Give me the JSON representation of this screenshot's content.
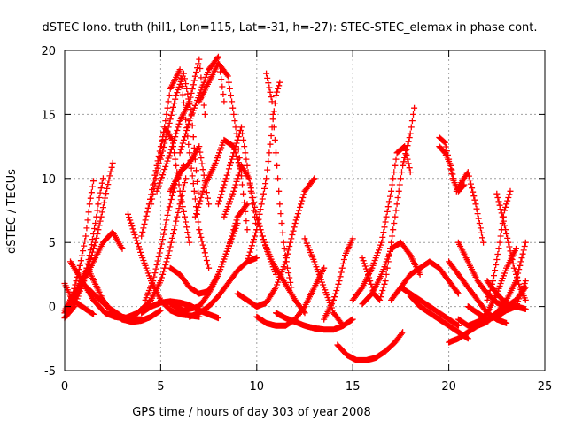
{
  "chart_data": {
    "type": "scatter",
    "title": "dSTEC Iono. truth (hil1, Lon=115, Lat=-31, h=-27): STEC-STEC_elemax in phase cont.",
    "xlabel": "GPS time / hours of day 303 of year 2008",
    "ylabel": "dSTEC  / TECUs",
    "xlim": [
      0,
      25
    ],
    "ylim": [
      -5,
      20
    ],
    "xticks": [
      0,
      5,
      10,
      15,
      20,
      25
    ],
    "yticks": [
      -5,
      0,
      5,
      10,
      15,
      20
    ],
    "xtick_labels": [
      "0",
      "5",
      "10",
      "15",
      "20",
      "25"
    ],
    "ytick_labels": [
      "-5",
      "0",
      "5",
      "10",
      "15",
      "20"
    ],
    "grid": true,
    "marker": "+",
    "color": "#ff0000",
    "series": [
      {
        "x": [
          0.0,
          0.3,
          0.6,
          0.9,
          1.2,
          1.5
        ],
        "y": [
          1.8,
          0.8,
          0.3,
          0.0,
          -0.3,
          -0.6
        ]
      },
      {
        "x": [
          0.0,
          0.5,
          1.0,
          1.3,
          1.6,
          1.8,
          2.0
        ],
        "y": [
          -0.9,
          0.0,
          2.0,
          4.0,
          6.5,
          8.5,
          10.0
        ]
      },
      {
        "x": [
          0.0,
          0.4,
          0.8,
          1.1,
          1.3,
          1.5
        ],
        "y": [
          -0.3,
          0.8,
          3.2,
          5.5,
          8.0,
          9.8
        ]
      },
      {
        "x": [
          0.3,
          0.9,
          1.5,
          2.1,
          2.6,
          3.0,
          3.3
        ],
        "y": [
          3.5,
          2.0,
          0.5,
          -0.5,
          -0.8,
          -0.9,
          -1.0
        ]
      },
      {
        "x": [
          0.3,
          0.8,
          1.2,
          1.6,
          1.9,
          2.2,
          2.5
        ],
        "y": [
          0.5,
          1.8,
          3.0,
          5.0,
          7.0,
          9.2,
          11.2
        ]
      },
      {
        "x": [
          0.0,
          0.5,
          1.0,
          1.5,
          2.0,
          2.5,
          3.0
        ],
        "y": [
          -0.5,
          0.5,
          2.0,
          3.5,
          5.0,
          5.8,
          4.5
        ]
      },
      {
        "x": [
          0.8,
          1.5,
          2.2,
          3.0,
          3.5,
          4.0
        ],
        "y": [
          2.0,
          1.0,
          0.0,
          -0.8,
          -1.0,
          -1.0
        ]
      },
      {
        "x": [
          1.2,
          2.0,
          2.5,
          3.0,
          3.5,
          4.0,
          4.5,
          5.0
        ],
        "y": [
          3.0,
          0.5,
          -0.5,
          -1.0,
          -1.2,
          -1.1,
          -0.8,
          -0.3
        ]
      },
      {
        "x": [
          3.3,
          4.0,
          4.5,
          5.0,
          5.5,
          6.0,
          6.5,
          7.0
        ],
        "y": [
          7.2,
          4.0,
          2.0,
          0.5,
          -0.3,
          -0.6,
          -0.7,
          -0.8
        ]
      },
      {
        "x": [
          3.0,
          3.8,
          4.5,
          5.0,
          5.4,
          5.7,
          6.0,
          6.3
        ],
        "y": [
          -1.0,
          -0.5,
          0.5,
          2.0,
          4.0,
          6.0,
          8.0,
          10.0
        ]
      },
      {
        "x": [
          4.2,
          4.6,
          5.0,
          5.4,
          5.8,
          6.2
        ],
        "y": [
          0.5,
          2.0,
          4.5,
          7.5,
          9.8,
          11.0
        ]
      },
      {
        "x": [
          4.0,
          4.4,
          4.8,
          5.2,
          5.6,
          6.0,
          6.5
        ],
        "y": [
          5.5,
          8.0,
          11.0,
          14.0,
          13.0,
          9.0,
          5.0
        ]
      },
      {
        "x": [
          5.0,
          5.4,
          5.8,
          6.2,
          6.6,
          7.0
        ],
        "y": [
          11.5,
          14.0,
          16.5,
          18.2,
          15.0,
          8.0
        ]
      },
      {
        "x": [
          4.5,
          5.0,
          5.5,
          6.0,
          6.5,
          7.0,
          7.5
        ],
        "y": [
          8.0,
          12.0,
          17.0,
          18.5,
          12.0,
          6.0,
          3.0
        ]
      },
      {
        "x": [
          4.8,
          5.5,
          6.0,
          6.5,
          7.0,
          7.3
        ],
        "y": [
          9.0,
          12.0,
          14.5,
          16.0,
          19.3,
          15.0
        ]
      },
      {
        "x": [
          6.0,
          6.5,
          7.0,
          7.5,
          8.0,
          8.3
        ],
        "y": [
          12.0,
          14.5,
          16.5,
          18.5,
          19.5,
          16.0
        ]
      },
      {
        "x": [
          7.0,
          7.5,
          8.0,
          8.5,
          9.0,
          9.5
        ],
        "y": [
          16.0,
          17.5,
          19.0,
          18.0,
          13.0,
          6.0
        ]
      },
      {
        "x": [
          5.5,
          6.0,
          6.5,
          7.0,
          7.5
        ],
        "y": [
          9.0,
          10.5,
          11.2,
          12.5,
          8.0
        ]
      },
      {
        "x": [
          6.8,
          7.3,
          7.8,
          8.3,
          8.8,
          9.2
        ],
        "y": [
          7.0,
          9.5,
          11.0,
          13.0,
          12.5,
          10.5
        ]
      },
      {
        "x": [
          8.0,
          8.4,
          8.8,
          9.2,
          9.6,
          10.0
        ],
        "y": [
          8.0,
          10.0,
          12.0,
          14.0,
          10.0,
          6.0
        ]
      },
      {
        "x": [
          8.3,
          8.8,
          9.2,
          9.6,
          10.0,
          10.5,
          11.0
        ],
        "y": [
          7.0,
          9.0,
          11.0,
          10.0,
          7.0,
          4.5,
          2.5
        ]
      },
      {
        "x": [
          5.5,
          6.0,
          6.5,
          7.0,
          7.5,
          8.0,
          8.5,
          9.0,
          9.5
        ],
        "y": [
          3.0,
          2.5,
          1.5,
          1.0,
          1.2,
          2.5,
          4.5,
          7.0,
          8.0
        ]
      },
      {
        "x": [
          5.5,
          6.2,
          7.0,
          7.5,
          8.0,
          8.5,
          9.0
        ],
        "y": [
          0.2,
          -0.3,
          0.0,
          1.0,
          2.5,
          4.5,
          6.5
        ]
      },
      {
        "x": [
          4.0,
          4.5,
          5.0,
          5.5,
          6.0,
          6.5,
          7.0,
          7.5,
          8.0
        ],
        "y": [
          -0.5,
          0.0,
          0.3,
          0.4,
          0.3,
          0.1,
          -0.3,
          -0.6,
          -0.9
        ]
      },
      {
        "x": [
          6.5,
          7.0,
          7.5,
          8.0,
          8.5,
          9.0,
          9.5,
          10.0
        ],
        "y": [
          -0.8,
          -0.5,
          0.0,
          0.8,
          1.8,
          2.8,
          3.5,
          3.8
        ]
      },
      {
        "x": [
          9.5,
          10.0,
          10.5,
          10.8,
          11.0,
          11.2
        ],
        "y": [
          3.5,
          6.0,
          10.0,
          14.0,
          16.5,
          17.5
        ]
      },
      {
        "x": [
          10.5,
          10.8,
          11.0,
          11.2,
          11.4,
          11.6,
          11.8
        ],
        "y": [
          18.2,
          16.0,
          12.0,
          8.0,
          5.0,
          3.0,
          1.5
        ]
      },
      {
        "x": [
          10.0,
          10.4,
          10.8,
          11.2,
          11.6,
          12.0,
          12.5
        ],
        "y": [
          7.0,
          5.0,
          3.5,
          2.5,
          1.5,
          0.5,
          -0.5
        ]
      },
      {
        "x": [
          9.0,
          9.5,
          10.0,
          10.5,
          11.0,
          11.5,
          12.0,
          12.5,
          13.0
        ],
        "y": [
          1.0,
          0.5,
          0.0,
          0.3,
          1.5,
          3.5,
          6.5,
          9.0,
          10.0
        ]
      },
      {
        "x": [
          10.0,
          10.5,
          11.0,
          11.5,
          12.0,
          12.5,
          13.0,
          13.5
        ],
        "y": [
          -0.8,
          -1.3,
          -1.5,
          -1.5,
          -1.0,
          0.0,
          1.5,
          3.0
        ]
      },
      {
        "x": [
          11.0,
          11.5,
          12.0,
          12.5,
          13.0,
          13.5,
          14.0,
          14.5,
          15.0
        ],
        "y": [
          -0.5,
          -0.9,
          -1.2,
          -1.5,
          -1.7,
          -1.8,
          -1.8,
          -1.5,
          -1.0
        ]
      },
      {
        "x": [
          12.5,
          13.0,
          13.5,
          14.0,
          14.5
        ],
        "y": [
          5.3,
          3.5,
          1.5,
          -0.5,
          -1.5
        ]
      },
      {
        "x": [
          13.5,
          14.0,
          14.3,
          14.6,
          15.0
        ],
        "y": [
          -1.0,
          0.5,
          2.0,
          4.0,
          5.3
        ]
      },
      {
        "x": [
          14.2,
          14.7,
          15.2,
          15.7,
          16.2,
          16.7,
          17.2,
          17.6
        ],
        "y": [
          -3.0,
          -3.8,
          -4.2,
          -4.2,
          -4.0,
          -3.5,
          -2.8,
          -2.0
        ]
      },
      {
        "x": [
          15.5,
          15.8,
          16.1,
          16.4,
          16.7,
          17.0,
          17.3,
          17.6,
          18.0,
          18.2
        ],
        "y": [
          3.8,
          2.5,
          1.0,
          0.5,
          2.0,
          5.0,
          8.0,
          11.0,
          13.5,
          15.5
        ]
      },
      {
        "x": [
          15.0,
          15.5,
          16.0,
          16.5,
          17.0,
          17.3,
          17.7,
          18.0
        ],
        "y": [
          0.5,
          1.5,
          3.0,
          5.0,
          9.0,
          12.0,
          12.5,
          10.5
        ]
      },
      {
        "x": [
          15.5,
          16.0,
          16.5,
          17.0,
          17.5,
          18.0,
          18.5
        ],
        "y": [
          0.2,
          1.0,
          2.5,
          4.5,
          5.0,
          4.0,
          2.5
        ]
      },
      {
        "x": [
          17.0,
          17.5,
          18.0,
          18.5,
          19.0,
          19.5,
          20.0,
          20.5
        ],
        "y": [
          0.5,
          1.5,
          2.5,
          3.0,
          3.5,
          3.0,
          2.0,
          1.0
        ]
      },
      {
        "x": [
          17.5,
          18.0,
          18.5,
          19.0,
          19.5,
          20.0,
          20.5
        ],
        "y": [
          1.5,
          1.0,
          0.5,
          0.0,
          -0.5,
          -1.0,
          -1.5
        ]
      },
      {
        "x": [
          18.0,
          18.5,
          19.0,
          19.5,
          20.0,
          20.5,
          21.0
        ],
        "y": [
          0.8,
          0.0,
          -0.5,
          -1.0,
          -1.5,
          -2.0,
          -2.5
        ]
      },
      {
        "x": [
          19.5,
          19.8,
          20.0,
          20.2,
          20.5,
          20.8
        ],
        "y": [
          13.2,
          12.8,
          11.5,
          10.0,
          9.0,
          9.5
        ]
      },
      {
        "x": [
          19.5,
          19.8,
          20.1,
          20.4,
          20.7,
          21.0,
          21.4,
          21.8
        ],
        "y": [
          12.5,
          12.0,
          11.0,
          9.0,
          9.8,
          10.5,
          8.0,
          5.0
        ]
      },
      {
        "x": [
          20.0,
          20.5,
          21.0,
          21.5,
          22.0,
          22.5,
          23.0
        ],
        "y": [
          3.5,
          2.5,
          1.5,
          0.5,
          -0.5,
          -1.0,
          -1.3
        ]
      },
      {
        "x": [
          20.5,
          21.0,
          21.5,
          22.0,
          22.5,
          23.0,
          23.5,
          24.0
        ],
        "y": [
          5.0,
          3.5,
          2.0,
          1.0,
          0.3,
          0.0,
          0.5,
          1.5
        ]
      },
      {
        "x": [
          20.5,
          21.0,
          21.5,
          22.0,
          22.5,
          23.0,
          23.5
        ],
        "y": [
          -1.0,
          -1.5,
          -1.2,
          -0.5,
          1.0,
          3.0,
          4.5
        ]
      },
      {
        "x": [
          21.5,
          22.0,
          22.5,
          23.0,
          23.5,
          24.0
        ],
        "y": [
          -1.5,
          -1.2,
          -0.5,
          0.5,
          2.0,
          5.0
        ]
      },
      {
        "x": [
          22.0,
          22.3,
          22.6,
          22.9,
          23.2
        ],
        "y": [
          0.5,
          2.0,
          4.5,
          7.5,
          9.0
        ]
      },
      {
        "x": [
          22.5,
          22.8,
          23.1,
          23.4,
          23.7,
          24.0
        ],
        "y": [
          8.8,
          7.0,
          5.0,
          3.0,
          1.5,
          0.5
        ]
      },
      {
        "x": [
          21.0,
          21.5,
          22.0,
          22.5,
          23.0,
          23.5,
          24.0
        ],
        "y": [
          0.0,
          -0.5,
          -1.0,
          -0.8,
          -0.3,
          0.0,
          -0.2
        ]
      },
      {
        "x": [
          20.0,
          20.5,
          21.0,
          21.5,
          22.0,
          22.5,
          23.0
        ],
        "y": [
          -2.8,
          -2.5,
          -2.0,
          -1.5,
          -1.0,
          -0.5,
          -0.2
        ]
      },
      {
        "x": [
          22.0,
          22.5,
          23.0,
          23.5,
          24.0
        ],
        "y": [
          2.0,
          1.0,
          0.2,
          0.0,
          2.0
        ]
      }
    ]
  }
}
